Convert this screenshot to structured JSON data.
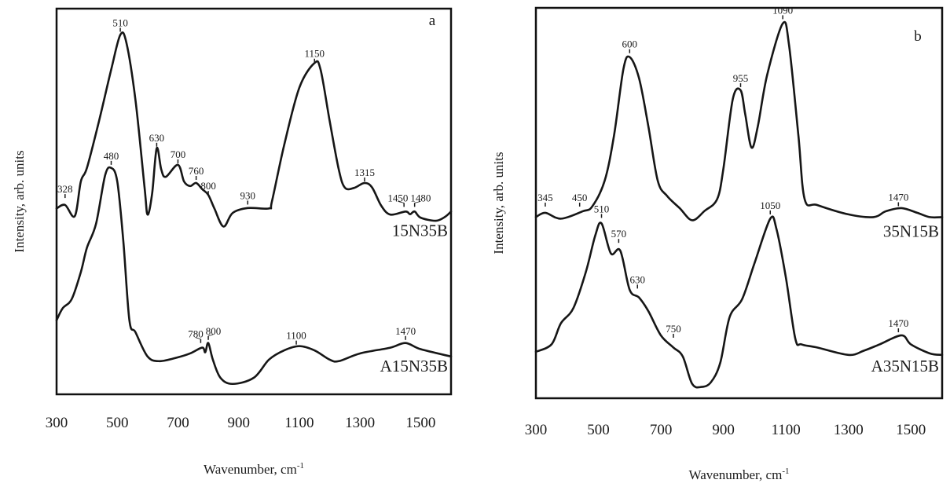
{
  "chart_data": [
    {
      "type": "line",
      "panel_label": "a",
      "xlabel": "Wavenumber, cm",
      "xlabel_sup": "-1",
      "ylabel": "Intensity, arb. units",
      "xlim": [
        300,
        1600
      ],
      "ylim": [
        0,
        100
      ],
      "xticks": [
        "300",
        "500",
        "700",
        "900",
        "1100",
        "1300",
        "1500"
      ],
      "grid": false,
      "series": [
        {
          "name": "15N35B",
          "label_y": 41,
          "points": [
            [
              300,
              48.2
            ],
            [
              328,
              49.1
            ],
            [
              360,
              46.2
            ],
            [
              380,
              55.2
            ],
            [
              400,
              58.7
            ],
            [
              440,
              70.9
            ],
            [
              480,
              84.2
            ],
            [
              510,
              93.2
            ],
            [
              530,
              91.2
            ],
            [
              560,
              76.3
            ],
            [
              590,
              53.6
            ],
            [
              600,
              46.6
            ],
            [
              615,
              52.1
            ],
            [
              630,
              63.8
            ],
            [
              645,
              58.3
            ],
            [
              660,
              56.4
            ],
            [
              700,
              59.5
            ],
            [
              720,
              55.2
            ],
            [
              740,
              54.0
            ],
            [
              760,
              54.8
            ],
            [
              780,
              53.2
            ],
            [
              800,
              51.7
            ],
            [
              820,
              48.2
            ],
            [
              850,
              43.5
            ],
            [
              880,
              47.0
            ],
            [
              930,
              48.3
            ],
            [
              1000,
              48.2
            ],
            [
              1010,
              50.1
            ],
            [
              1050,
              64.6
            ],
            [
              1100,
              79.5
            ],
            [
              1150,
              85.9
            ],
            [
              1170,
              84.2
            ],
            [
              1200,
              70.9
            ],
            [
              1230,
              58.3
            ],
            [
              1250,
              53.6
            ],
            [
              1280,
              53.5
            ],
            [
              1315,
              54.8
            ],
            [
              1340,
              53.6
            ],
            [
              1370,
              48.9
            ],
            [
              1400,
              46.6
            ],
            [
              1450,
              47.4
            ],
            [
              1465,
              46.7
            ],
            [
              1480,
              47.4
            ],
            [
              1500,
              45.8
            ],
            [
              1550,
              45.0
            ],
            [
              1580,
              46.0
            ],
            [
              1600,
              47.4
            ]
          ],
          "annotations": [
            {
              "text": "328",
              "x": 328,
              "y": 50.9
            },
            {
              "text": "510",
              "x": 510,
              "y": 94.0
            },
            {
              "text": "630",
              "x": 630,
              "y": 64.2
            },
            {
              "text": "700",
              "x": 700,
              "y": 59.9
            },
            {
              "text": "760",
              "x": 760,
              "y": 55.6
            },
            {
              "text": "800",
              "x": 800,
              "y": 51.7
            },
            {
              "text": "930",
              "x": 930,
              "y": 49.2
            },
            {
              "text": "1150",
              "x": 1150,
              "y": 86.0
            },
            {
              "text": "1315",
              "x": 1315,
              "y": 55.2
            },
            {
              "text": "1450",
              "x": 1445,
              "y": 48.6
            },
            {
              "text": "1480",
              "x": 1480,
              "y": 48.6
            }
          ]
        },
        {
          "name": "A15N35B",
          "label_y": 5.9,
          "points": [
            [
              300,
              19.2
            ],
            [
              320,
              22.3
            ],
            [
              350,
              24.7
            ],
            [
              380,
              31.7
            ],
            [
              400,
              38.0
            ],
            [
              430,
              44.2
            ],
            [
              460,
              56.8
            ],
            [
              480,
              58.7
            ],
            [
              500,
              55.2
            ],
            [
              520,
              39.7
            ],
            [
              540,
              19.2
            ],
            [
              560,
              16.1
            ],
            [
              600,
              9.8
            ],
            [
              640,
              8.6
            ],
            [
              700,
              9.6
            ],
            [
              740,
              10.6
            ],
            [
              780,
              12.1
            ],
            [
              790,
              10.9
            ],
            [
              800,
              13.3
            ],
            [
              815,
              9.0
            ],
            [
              840,
              4.3
            ],
            [
              880,
              2.7
            ],
            [
              950,
              4.3
            ],
            [
              1000,
              9.0
            ],
            [
              1050,
              11.4
            ],
            [
              1100,
              12.5
            ],
            [
              1150,
              11.4
            ],
            [
              1200,
              9.0
            ],
            [
              1230,
              8.6
            ],
            [
              1300,
              10.6
            ],
            [
              1400,
              12.1
            ],
            [
              1450,
              13.3
            ],
            [
              1500,
              11.7
            ],
            [
              1600,
              9.8
            ]
          ],
          "annotations": [
            {
              "text": "480",
              "x": 480,
              "y": 59.5
            },
            {
              "text": "780",
              "x": 775,
              "y": 13.3
            },
            {
              "text": "800",
              "x": 800,
              "y": 14.1
            },
            {
              "text": "1100",
              "x": 1090,
              "y": 12.9
            },
            {
              "text": "1470",
              "x": 1450,
              "y": 14.1
            }
          ]
        }
      ]
    },
    {
      "type": "line",
      "panel_label": "b",
      "xlabel": "Wavenumber, cm",
      "xlabel_sup": "-1",
      "ylabel": "Intensity, arb. units",
      "xlim": [
        300,
        1600
      ],
      "ylim": [
        0,
        100
      ],
      "xticks": [
        "300",
        "500",
        "700",
        "900",
        "1100",
        "1300",
        "1500"
      ],
      "grid": false,
      "series": [
        {
          "name": "35N15B",
          "label_y": 41.3,
          "points": [
            [
              300,
              46.4
            ],
            [
              330,
              47.5
            ],
            [
              380,
              46.0
            ],
            [
              450,
              47.9
            ],
            [
              480,
              49.1
            ],
            [
              520,
              55.7
            ],
            [
              550,
              67.3
            ],
            [
              580,
              84.3
            ],
            [
              600,
              87.4
            ],
            [
              630,
              82.0
            ],
            [
              660,
              69.6
            ],
            [
              690,
              55.7
            ],
            [
              720,
              51.8
            ],
            [
              760,
              48.7
            ],
            [
              800,
              45.6
            ],
            [
              840,
              48.0
            ],
            [
              880,
              51.0
            ],
            [
              900,
              58.8
            ],
            [
              930,
              76.6
            ],
            [
              955,
              78.9
            ],
            [
              970,
              72.7
            ],
            [
              990,
              64.2
            ],
            [
              1010,
              69.6
            ],
            [
              1040,
              82.8
            ],
            [
              1090,
              96.0
            ],
            [
              1110,
              90.5
            ],
            [
              1140,
              67.3
            ],
            [
              1160,
              51.0
            ],
            [
              1200,
              49.5
            ],
            [
              1300,
              47.1
            ],
            [
              1380,
              46.4
            ],
            [
              1420,
              47.9
            ],
            [
              1470,
              48.7
            ],
            [
              1520,
              47.5
            ],
            [
              1560,
              46.4
            ],
            [
              1600,
              46.4
            ]
          ],
          "annotations": [
            {
              "text": "345",
              "x": 330,
              "y": 49.1
            },
            {
              "text": "450",
              "x": 440,
              "y": 49.1
            },
            {
              "text": "600",
              "x": 600,
              "y": 88.4
            },
            {
              "text": "955",
              "x": 955,
              "y": 79.7
            },
            {
              "text": "1090",
              "x": 1090,
              "y": 97.1
            },
            {
              "text": "1470",
              "x": 1460,
              "y": 49.2
            }
          ]
        },
        {
          "name": "A35N15B",
          "label_y": 6.8,
          "points": [
            [
              300,
              11.9
            ],
            [
              350,
              13.8
            ],
            [
              380,
              19.2
            ],
            [
              420,
              23.1
            ],
            [
              460,
              32.4
            ],
            [
              490,
              41.7
            ],
            [
              510,
              44.8
            ],
            [
              540,
              37.1
            ],
            [
              570,
              37.8
            ],
            [
              600,
              27.8
            ],
            [
              630,
              25.8
            ],
            [
              660,
              22.3
            ],
            [
              700,
              16.1
            ],
            [
              740,
              13.0
            ],
            [
              770,
              10.7
            ],
            [
              800,
              3.7
            ],
            [
              830,
              2.9
            ],
            [
              860,
              4.1
            ],
            [
              890,
              9.1
            ],
            [
              920,
              20.8
            ],
            [
              960,
              25.4
            ],
            [
              1000,
              34.7
            ],
            [
              1050,
              46.0
            ],
            [
              1070,
              43.3
            ],
            [
              1100,
              30.9
            ],
            [
              1130,
              15.3
            ],
            [
              1150,
              13.8
            ],
            [
              1200,
              13.0
            ],
            [
              1300,
              11.1
            ],
            [
              1350,
              12.2
            ],
            [
              1400,
              13.8
            ],
            [
              1470,
              16.1
            ],
            [
              1500,
              13.8
            ],
            [
              1560,
              11.5
            ],
            [
              1600,
              11.1
            ]
          ],
          "annotations": [
            {
              "text": "510",
              "x": 510,
              "y": 46.2
            },
            {
              "text": "570",
              "x": 565,
              "y": 39.8
            },
            {
              "text": "630",
              "x": 625,
              "y": 28.1
            },
            {
              "text": "750",
              "x": 740,
              "y": 15.5
            },
            {
              "text": "1050",
              "x": 1050,
              "y": 47.1
            },
            {
              "text": "1470",
              "x": 1460,
              "y": 16.9
            }
          ]
        }
      ]
    }
  ]
}
